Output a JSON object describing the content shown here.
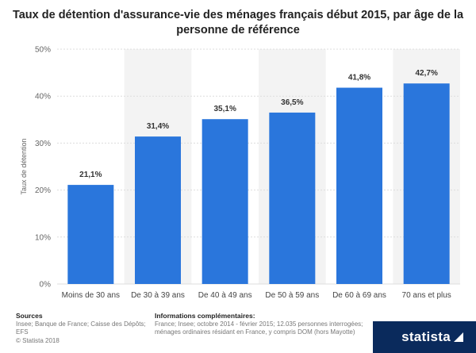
{
  "title": "Taux de détention d'assurance-vie des ménages français début 2015, par âge de la personne de référence",
  "chart_data": {
    "type": "bar",
    "categories": [
      "Moins de 30 ans",
      "De 30 à 39 ans",
      "De 40 à 49 ans",
      "De 50 à 59 ans",
      "De 60 à 69 ans",
      "70 ans et plus"
    ],
    "values": [
      21.1,
      31.4,
      35.1,
      36.5,
      41.8,
      42.7
    ],
    "data_labels": [
      "21,1%",
      "31,4%",
      "35,1%",
      "36,5%",
      "41,8%",
      "42,7%"
    ],
    "ylabel": "Taux de détention",
    "xlabel": "",
    "ylim": [
      0,
      50
    ],
    "yticks": [
      0,
      10,
      20,
      30,
      40,
      50
    ],
    "ytick_labels": [
      "0%",
      "10%",
      "20%",
      "30%",
      "40%",
      "50%"
    ],
    "grid": true,
    "bar_color": "#2a76dc"
  },
  "footer": {
    "sources_title": "Sources",
    "sources_text": "Insee; Banque de France; Caisse des Dépôts; EFS",
    "copyright": "© Statista 2018",
    "info_title": "Informations complémentaires:",
    "info_text": "France; Insee; octobre 2014 - février 2015; 12.035 personnes interrogées; ménages ordinaires résidant en France, y compris DOM (hors Mayotte)"
  },
  "brand": {
    "name": "statista",
    "color": "#0a2a5c"
  }
}
